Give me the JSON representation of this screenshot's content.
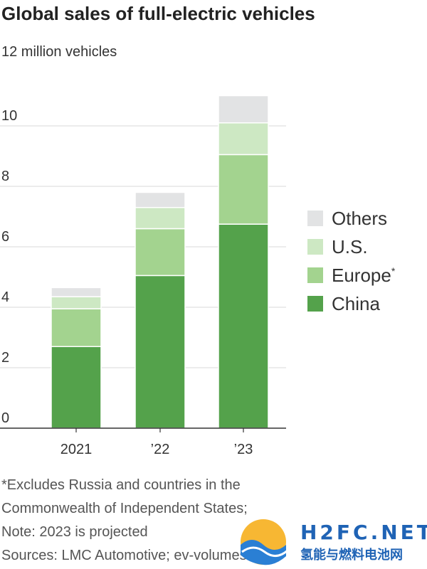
{
  "title": "Global sales of full-electric vehicles",
  "footnote": {
    "lines": [
      "*Excludes Russia and countries in the",
      "Commonwealth of Independent States;",
      "Note: 2023 is projected",
      "Sources: LMC Automotive; ev-volumes.com"
    ]
  },
  "watermark": {
    "logo_text": "H2FC.NET",
    "subtitle": "氢能与燃料电池网"
  },
  "chart_data": {
    "type": "bar",
    "stacked": true,
    "title": "Global sales of full-electric vehicles",
    "ylabel": "12 million vehicles",
    "xlabel": "",
    "categories": [
      "2021",
      "’22",
      "’23"
    ],
    "ylim": [
      0,
      12
    ],
    "yticks": [
      0,
      2,
      4,
      6,
      8,
      10
    ],
    "grid": true,
    "legend_position": "right",
    "series": [
      {
        "name": "China",
        "color": "#54a24b",
        "values": [
          2.7,
          5.05,
          6.75
        ]
      },
      {
        "name": "Europe*",
        "color": "#a3d38f",
        "values": [
          1.25,
          1.55,
          2.3
        ]
      },
      {
        "name": "U.S.",
        "color": "#cde8c3",
        "values": [
          0.4,
          0.7,
          1.05
        ]
      },
      {
        "name": "Others",
        "color": "#e2e3e4",
        "values": [
          0.3,
          0.5,
          0.9
        ]
      }
    ],
    "legend_order": [
      "Others",
      "U.S.",
      "Europe*",
      "China"
    ]
  }
}
